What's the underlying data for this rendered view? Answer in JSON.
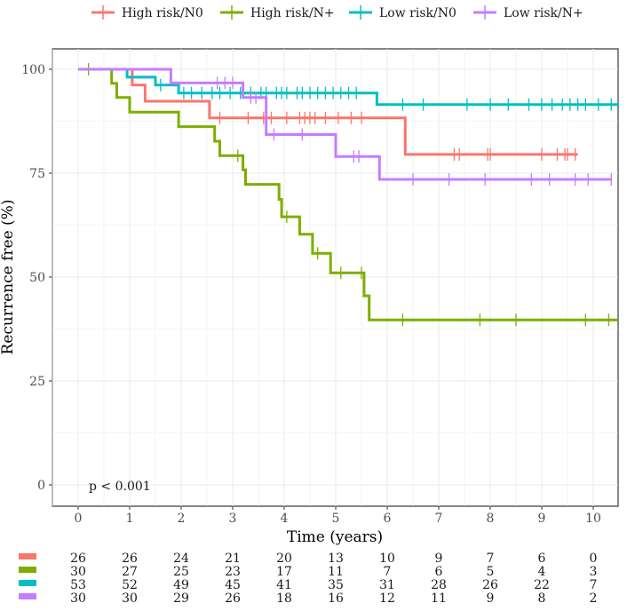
{
  "chart_data": {
    "type": "line",
    "subtype": "kaplan-meier",
    "xlabel": "Time (years)",
    "ylabel": "Recurrence free (%)",
    "xlim": [
      -0.5,
      10.5
    ],
    "ylim": [
      -5,
      105
    ],
    "xticks": [
      0,
      1,
      2,
      3,
      4,
      5,
      6,
      7,
      8,
      9,
      10
    ],
    "yticks": [
      0,
      25,
      50,
      75,
      100
    ],
    "grid": true,
    "legend_position": "top",
    "annotation": "p < 0.001",
    "series": [
      {
        "name": "High risk/N0",
        "color": "#F8766D",
        "steps": [
          [
            0,
            100
          ],
          [
            1.05,
            96.2
          ],
          [
            1.3,
            92.3
          ],
          [
            2.55,
            88.3
          ],
          [
            6.35,
            79.5
          ]
        ],
        "end_x": 9.7,
        "censor": [
          2.75,
          3.3,
          3.6,
          3.75,
          4.05,
          4.3,
          4.4,
          4.5,
          4.6,
          4.8,
          5.05,
          5.3,
          5.5,
          7.3,
          7.4,
          7.95,
          8.0,
          9.0,
          9.3,
          9.45,
          9.5,
          9.65
        ]
      },
      {
        "name": "High risk/N+",
        "color": "#7CAE00",
        "steps": [
          [
            0,
            100
          ],
          [
            0.65,
            96.6
          ],
          [
            0.75,
            93.2
          ],
          [
            1.0,
            89.7
          ],
          [
            1.95,
            86.2
          ],
          [
            2.65,
            82.7
          ],
          [
            2.75,
            79.2
          ],
          [
            3.2,
            75.8
          ],
          [
            3.25,
            72.3
          ],
          [
            3.9,
            68.7
          ],
          [
            3.95,
            64.5
          ],
          [
            4.3,
            60.3
          ],
          [
            4.55,
            55.7
          ],
          [
            4.9,
            51.0
          ],
          [
            5.55,
            45.5
          ],
          [
            5.65,
            39.7
          ]
        ],
        "end_x": 10.5,
        "censor": [
          0.2,
          3.1,
          4.05,
          4.65,
          5.1,
          5.5,
          6.3,
          7.8,
          8.5,
          9.85,
          10.3
        ]
      },
      {
        "name": "Low risk/N0",
        "color": "#00BFC4",
        "steps": [
          [
            0,
            100
          ],
          [
            0.95,
            98.1
          ],
          [
            1.5,
            96.2
          ],
          [
            1.95,
            94.3
          ],
          [
            5.8,
            91.5
          ]
        ],
        "end_x": 10.5,
        "censor": [
          1.6,
          2.05,
          2.2,
          2.4,
          2.6,
          2.75,
          2.95,
          3.15,
          3.35,
          3.55,
          3.65,
          3.85,
          3.95,
          4.05,
          4.25,
          4.35,
          4.5,
          4.65,
          4.8,
          4.95,
          5.1,
          5.25,
          5.4,
          6.3,
          6.7,
          7.55,
          8.0,
          8.35,
          8.75,
          9.0,
          9.2,
          9.4,
          9.55,
          9.7,
          9.85,
          10.1,
          10.35
        ]
      },
      {
        "name": "Low risk/N+",
        "color": "#C77CFF",
        "steps": [
          [
            0,
            100
          ],
          [
            1.8,
            96.7
          ],
          [
            3.2,
            93.2
          ],
          [
            3.65,
            84.3
          ],
          [
            5.0,
            79.0
          ],
          [
            5.85,
            73.5
          ]
        ],
        "end_x": 10.35,
        "censor": [
          2.7,
          2.85,
          3.0,
          3.35,
          3.45,
          3.8,
          4.35,
          5.35,
          5.45,
          6.5,
          7.2,
          7.9,
          8.8,
          9.15,
          9.65,
          9.9,
          10.35
        ]
      }
    ]
  },
  "risk_table": {
    "rows": [
      {
        "color": "#F8766D",
        "values": [
          "26",
          "26",
          "24",
          "21",
          "20",
          "13",
          "10",
          "9",
          "7",
          "6",
          "0"
        ]
      },
      {
        "color": "#7CAE00",
        "values": [
          "30",
          "27",
          "25",
          "23",
          "17",
          "11",
          "7",
          "6",
          "5",
          "4",
          "3"
        ]
      },
      {
        "color": "#00BFC4",
        "values": [
          "53",
          "52",
          "49",
          "45",
          "41",
          "35",
          "31",
          "28",
          "26",
          "22",
          "7"
        ]
      },
      {
        "color": "#C77CFF",
        "values": [
          "30",
          "30",
          "29",
          "26",
          "18",
          "16",
          "12",
          "11",
          "9",
          "8",
          "2"
        ]
      }
    ]
  }
}
